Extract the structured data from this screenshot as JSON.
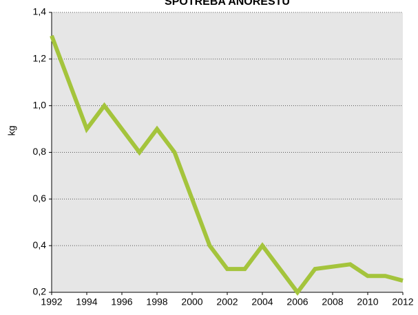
{
  "chart_data": {
    "type": "line",
    "title": "SPOTREBA ANORESTU",
    "y_label": "kg",
    "x": [
      1992,
      1993,
      1994,
      1995,
      1996,
      1997,
      1998,
      1999,
      2000,
      2001,
      2002,
      2003,
      2004,
      2005,
      2006,
      2007,
      2008,
      2009,
      2010,
      2011,
      2012
    ],
    "series": [
      {
        "name": "kg",
        "color": "#a4c43c",
        "values": [
          1.3,
          1.1,
          0.9,
          1.0,
          0.9,
          0.8,
          0.9,
          0.8,
          0.6,
          0.4,
          0.3,
          0.3,
          0.4,
          0.3,
          0.2,
          0.3,
          0.31,
          0.32,
          0.27,
          0.27,
          0.25
        ]
      }
    ],
    "xlim": [
      1992,
      2012
    ],
    "xticks": [
      1992,
      1994,
      1996,
      1998,
      2000,
      2002,
      2004,
      2006,
      2008,
      2010,
      2012
    ],
    "ylim": [
      0.2,
      1.4
    ],
    "yticks": [
      {
        "value": 0.2,
        "label": "0,2"
      },
      {
        "value": 0.4,
        "label": "0,4"
      },
      {
        "value": 0.6,
        "label": "0,6"
      },
      {
        "value": 0.8,
        "label": "0,8"
      },
      {
        "value": 1.0,
        "label": "1,0"
      },
      {
        "value": 1.2,
        "label": "1,2"
      },
      {
        "value": 1.4,
        "label": "1,4"
      }
    ],
    "grid": true
  }
}
